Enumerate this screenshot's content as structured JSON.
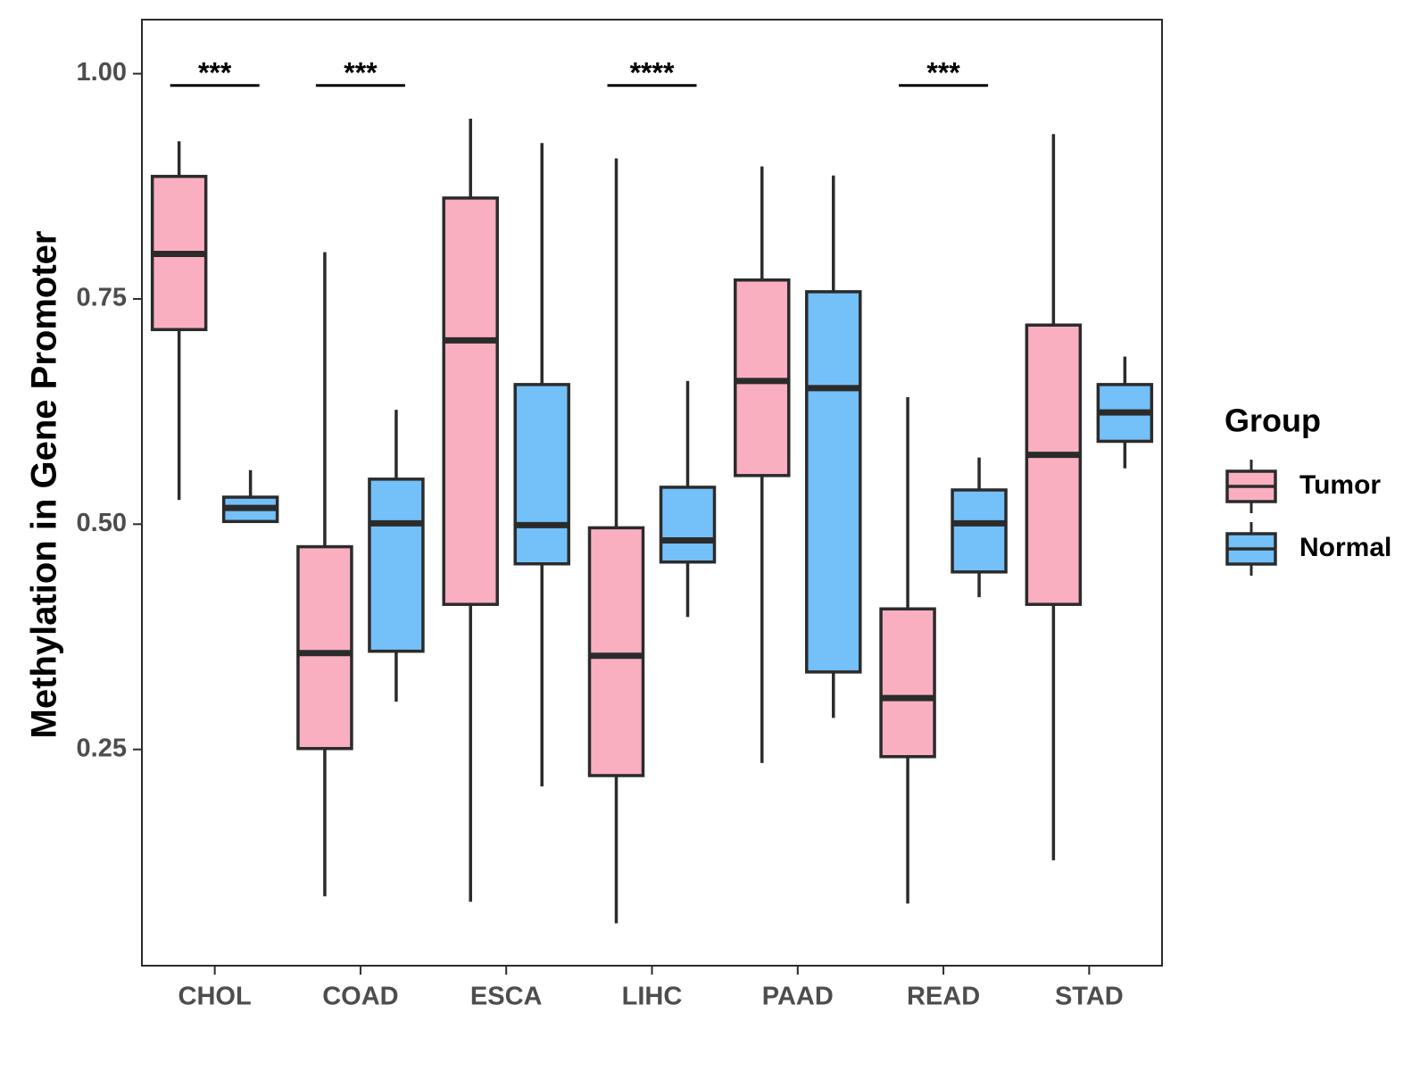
{
  "chart_data": {
    "type": "boxplot",
    "title": "",
    "xlabel": "",
    "ylabel": "Methylation in Gene Promoter",
    "ylim": [
      0.01,
      1.06
    ],
    "yticks": [
      0.25,
      0.5,
      0.75,
      1.0
    ],
    "ytick_labels": [
      "0.25",
      "0.50",
      "0.75",
      "1.00"
    ],
    "categories": [
      "CHOL",
      "COAD",
      "ESCA",
      "LIHC",
      "PAAD",
      "READ",
      "STAD"
    ],
    "legend": {
      "title": "Group",
      "position": "right",
      "entries": [
        {
          "name": "Tumor",
          "color": "#FAAFC1"
        },
        {
          "name": "Normal",
          "color": "#74C0F8"
        }
      ]
    },
    "series": [
      {
        "name": "Tumor",
        "color": "#FAAFC1",
        "boxes": [
          {
            "min": 0.527,
            "q1": 0.716,
            "median": 0.8,
            "q3": 0.886,
            "max": 0.925
          },
          {
            "min": 0.087,
            "q1": 0.251,
            "median": 0.357,
            "q3": 0.475,
            "max": 0.802
          },
          {
            "min": 0.081,
            "q1": 0.411,
            "median": 0.704,
            "q3": 0.862,
            "max": 0.95
          },
          {
            "min": 0.057,
            "q1": 0.221,
            "median": 0.354,
            "q3": 0.496,
            "max": 0.906
          },
          {
            "min": 0.235,
            "q1": 0.554,
            "median": 0.659,
            "q3": 0.771,
            "max": 0.897
          },
          {
            "min": 0.079,
            "q1": 0.242,
            "median": 0.307,
            "q3": 0.406,
            "max": 0.641
          },
          {
            "min": 0.127,
            "q1": 0.411,
            "median": 0.577,
            "q3": 0.721,
            "max": 0.933
          }
        ]
      },
      {
        "name": "Normal",
        "color": "#74C0F8",
        "boxes": [
          {
            "min": 0.503,
            "q1": 0.503,
            "median": 0.518,
            "q3": 0.53,
            "max": 0.56
          },
          {
            "min": 0.303,
            "q1": 0.359,
            "median": 0.501,
            "q3": 0.55,
            "max": 0.627
          },
          {
            "min": 0.209,
            "q1": 0.456,
            "median": 0.499,
            "q3": 0.655,
            "max": 0.923
          },
          {
            "min": 0.397,
            "q1": 0.458,
            "median": 0.482,
            "q3": 0.541,
            "max": 0.659
          },
          {
            "min": 0.285,
            "q1": 0.336,
            "median": 0.651,
            "q3": 0.758,
            "max": 0.887
          },
          {
            "min": 0.419,
            "q1": 0.447,
            "median": 0.501,
            "q3": 0.538,
            "max": 0.574
          },
          {
            "min": 0.562,
            "q1": 0.592,
            "median": 0.624,
            "q3": 0.655,
            "max": 0.686
          }
        ]
      }
    ],
    "annotations": [
      {
        "category": "CHOL",
        "label": "***"
      },
      {
        "category": "COAD",
        "label": "***"
      },
      {
        "category": "LIHC",
        "label": "****"
      },
      {
        "category": "READ",
        "label": "***"
      }
    ],
    "significance_bar_y": 0.987,
    "grid": false
  }
}
